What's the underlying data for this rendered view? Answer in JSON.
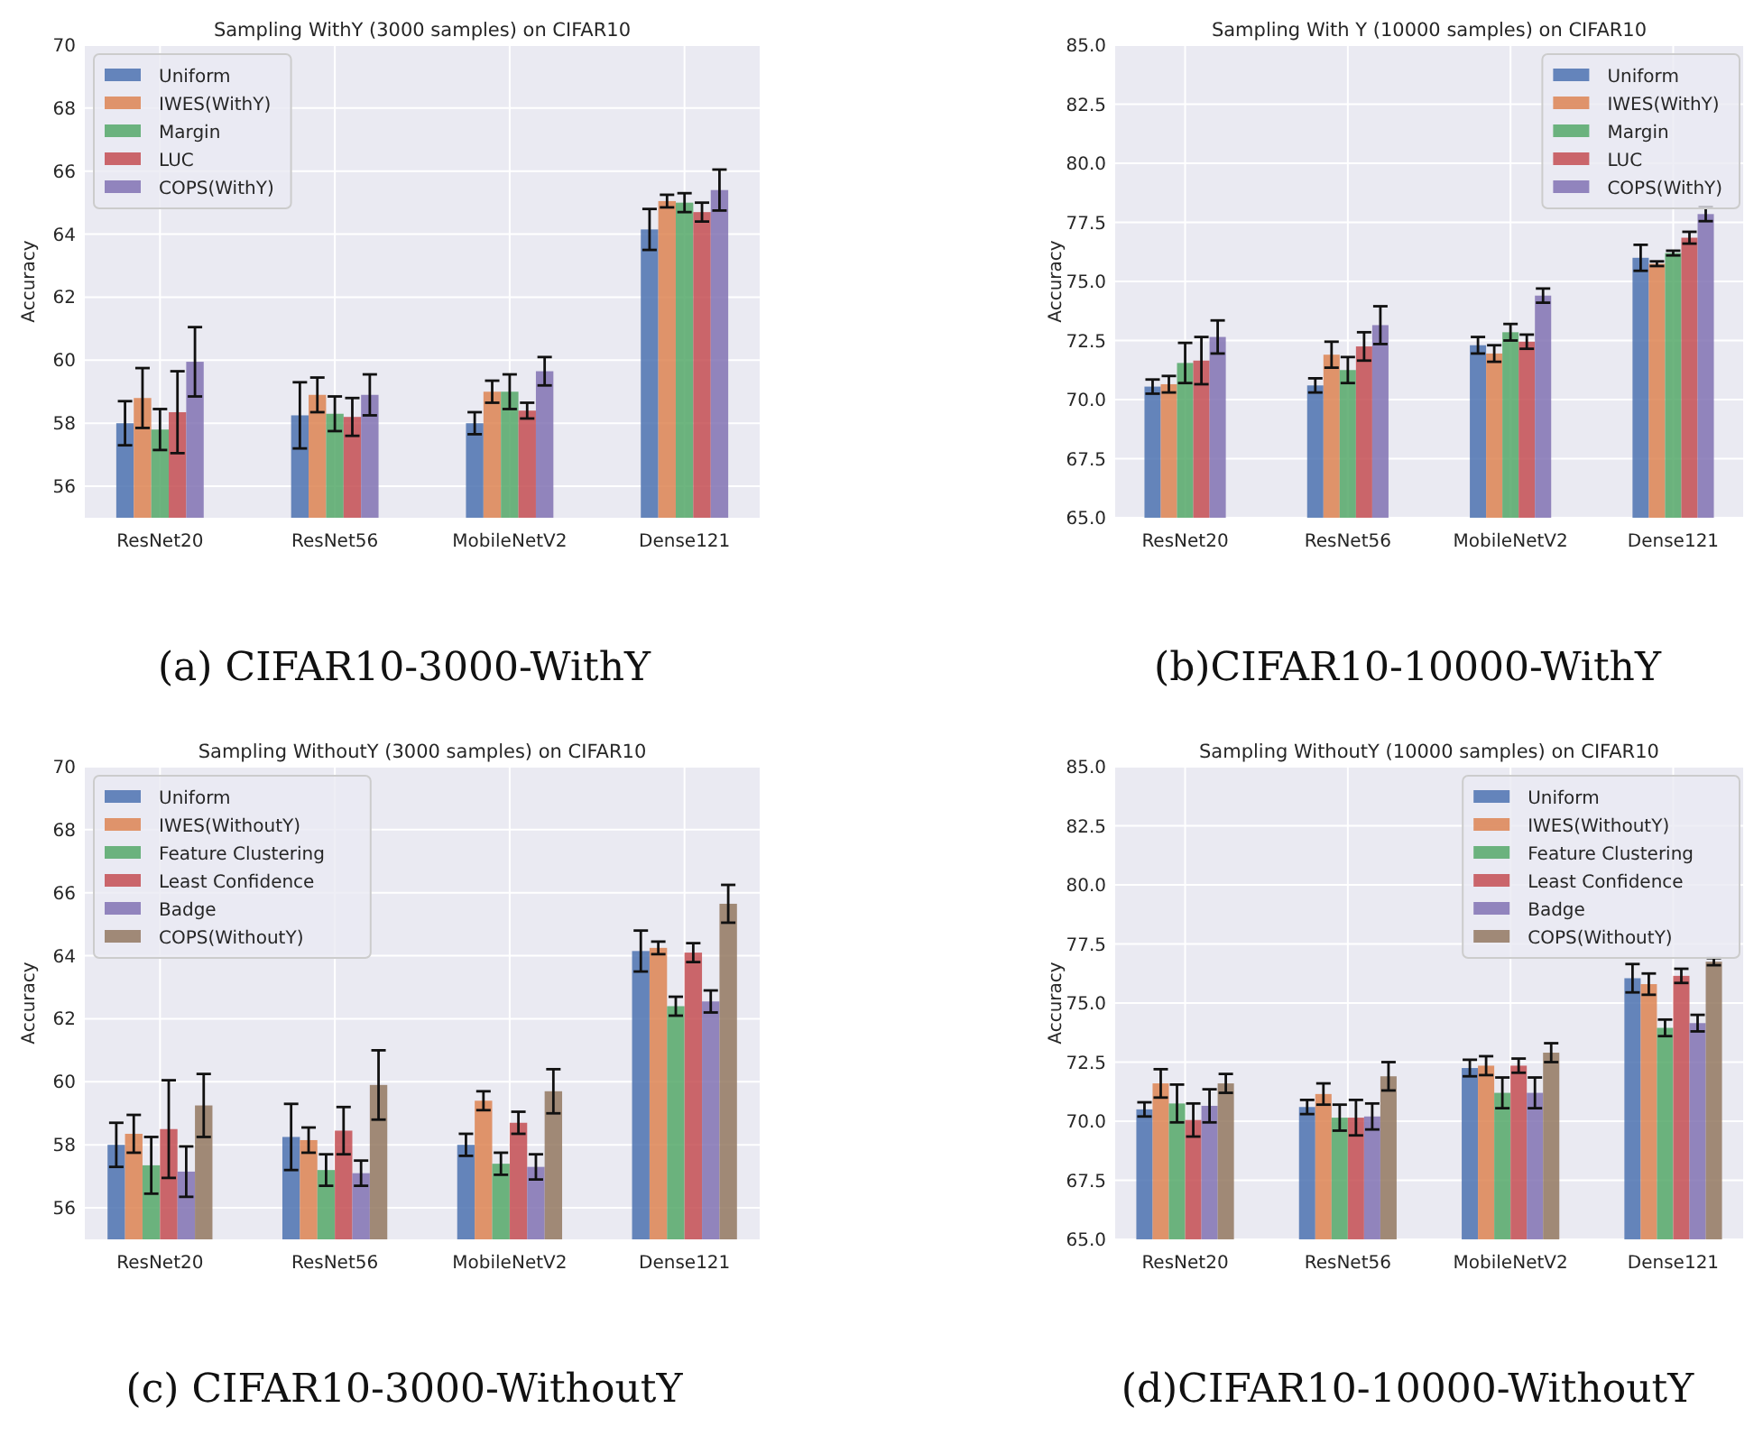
{
  "chart_data": [
    {
      "type": "bar",
      "title": "Sampling WithY (3000 samples) on CIFAR10",
      "ylabel": "Accuracy",
      "categories": [
        "ResNet20",
        "ResNet56",
        "MobileNetV2",
        "Dense121"
      ],
      "series": [
        {
          "name": "Uniform",
          "color": "#4c72b0",
          "values": [
            58.0,
            58.25,
            58.0,
            64.15
          ],
          "errors": [
            0.7,
            1.05,
            0.35,
            0.65
          ]
        },
        {
          "name": "IWES(WithY)",
          "color": "#dd8452",
          "values": [
            58.8,
            58.9,
            59.0,
            65.05
          ],
          "errors": [
            0.95,
            0.55,
            0.35,
            0.2
          ]
        },
        {
          "name": "Margin",
          "color": "#55a868",
          "values": [
            57.8,
            58.3,
            59.0,
            65.0
          ],
          "errors": [
            0.65,
            0.55,
            0.55,
            0.3
          ]
        },
        {
          "name": "LUC",
          "color": "#c44e52",
          "values": [
            58.35,
            58.2,
            58.4,
            64.7
          ],
          "errors": [
            1.3,
            0.6,
            0.25,
            0.3
          ]
        },
        {
          "name": "COPS(WithY)",
          "color": "#8172b3",
          "values": [
            59.95,
            58.9,
            59.65,
            65.4
          ],
          "errors": [
            1.1,
            0.65,
            0.45,
            0.65
          ]
        }
      ],
      "ylim": [
        55,
        70
      ],
      "yticks": [
        56,
        58,
        60,
        62,
        64,
        66,
        68,
        70
      ],
      "grid": true,
      "legend": "top left",
      "annotations": [
        "(a) CIFAR10-3000-WithY"
      ]
    },
    {
      "type": "bar",
      "title": "Sampling With Y (10000 samples) on CIFAR10",
      "ylabel": "Accuracy",
      "categories": [
        "ResNet20",
        "ResNet56",
        "MobileNetV2",
        "Dense121"
      ],
      "series": [
        {
          "name": "Uniform",
          "color": "#4c72b0",
          "values": [
            70.55,
            70.6,
            72.3,
            76.0
          ],
          "errors": [
            0.3,
            0.3,
            0.35,
            0.55
          ]
        },
        {
          "name": "IWES(WithY)",
          "color": "#dd8452",
          "values": [
            70.65,
            71.9,
            71.95,
            75.75
          ],
          "errors": [
            0.35,
            0.55,
            0.35,
            0.1
          ]
        },
        {
          "name": "Margin",
          "color": "#55a868",
          "values": [
            71.55,
            71.25,
            72.85,
            76.2
          ],
          "errors": [
            0.85,
            0.55,
            0.35,
            0.1
          ]
        },
        {
          "name": "LUC",
          "color": "#c44e52",
          "values": [
            71.65,
            72.25,
            72.45,
            76.85
          ],
          "errors": [
            1.0,
            0.6,
            0.3,
            0.25
          ]
        },
        {
          "name": "COPS(WithY)",
          "color": "#8172b3",
          "values": [
            72.65,
            73.15,
            74.4,
            77.85
          ],
          "errors": [
            0.7,
            0.8,
            0.3,
            0.3
          ]
        }
      ],
      "ylim": [
        65,
        85
      ],
      "yticks": [
        {
          "value": 65,
          "label": "65.0"
        },
        {
          "value": 67.5,
          "label": "67.5"
        },
        {
          "value": 70,
          "label": "70.0"
        },
        {
          "value": 72.5,
          "label": "72.5"
        },
        {
          "value": 75,
          "label": "75.0"
        },
        {
          "value": 77.5,
          "label": "77.5"
        },
        {
          "value": 80,
          "label": "80.0"
        },
        {
          "value": 82.5,
          "label": "82.5"
        },
        {
          "value": 85,
          "label": "85.0"
        }
      ],
      "grid": true,
      "legend": "top right",
      "annotations": [
        "(b)CIFAR10-10000-WithY"
      ]
    },
    {
      "type": "bar",
      "title": "Sampling WithoutY (3000 samples) on CIFAR10",
      "ylabel": "Accuracy",
      "categories": [
        "ResNet20",
        "ResNet56",
        "MobileNetV2",
        "Dense121"
      ],
      "series": [
        {
          "name": "Uniform",
          "color": "#4c72b0",
          "values": [
            58.0,
            58.25,
            58.0,
            64.15
          ],
          "errors": [
            0.7,
            1.05,
            0.35,
            0.65
          ]
        },
        {
          "name": "IWES(WithoutY)",
          "color": "#dd8452",
          "values": [
            58.35,
            58.15,
            59.4,
            64.25
          ],
          "errors": [
            0.6,
            0.4,
            0.3,
            0.2
          ]
        },
        {
          "name": "Feature Clustering",
          "color": "#55a868",
          "values": [
            57.35,
            57.2,
            57.4,
            62.4
          ],
          "errors": [
            0.9,
            0.5,
            0.35,
            0.3
          ]
        },
        {
          "name": "Least Confidence",
          "color": "#c44e52",
          "values": [
            58.5,
            58.45,
            58.7,
            64.1
          ],
          "errors": [
            1.55,
            0.75,
            0.35,
            0.3
          ]
        },
        {
          "name": "Badge",
          "color": "#8172b3",
          "values": [
            57.15,
            57.1,
            57.3,
            62.55
          ],
          "errors": [
            0.8,
            0.4,
            0.4,
            0.35
          ]
        },
        {
          "name": "COPS(WithoutY)",
          "color": "#937860",
          "values": [
            59.25,
            59.9,
            59.7,
            65.65
          ],
          "errors": [
            1.0,
            1.1,
            0.7,
            0.6
          ]
        }
      ],
      "ylim": [
        55,
        70
      ],
      "yticks": [
        56,
        58,
        60,
        62,
        64,
        66,
        68,
        70
      ],
      "grid": true,
      "legend": "top left",
      "annotations": [
        "(c) CIFAR10-3000-WithoutY"
      ]
    },
    {
      "type": "bar",
      "title": "Sampling WithoutY (10000 samples) on CIFAR10",
      "ylabel": "Accuracy",
      "categories": [
        "ResNet20",
        "ResNet56",
        "MobileNetV2",
        "Dense121"
      ],
      "series": [
        {
          "name": "Uniform",
          "color": "#4c72b0",
          "values": [
            70.5,
            70.6,
            72.25,
            76.05
          ],
          "errors": [
            0.3,
            0.3,
            0.35,
            0.6
          ]
        },
        {
          "name": "IWES(WithoutY)",
          "color": "#dd8452",
          "values": [
            71.6,
            71.15,
            72.35,
            75.8
          ],
          "errors": [
            0.6,
            0.45,
            0.4,
            0.45
          ]
        },
        {
          "name": "Feature Clustering",
          "color": "#55a868",
          "values": [
            70.75,
            70.15,
            71.2,
            73.95
          ],
          "errors": [
            0.8,
            0.55,
            0.65,
            0.35
          ]
        },
        {
          "name": "Least Confidence",
          "color": "#c44e52",
          "values": [
            70.05,
            70.15,
            72.35,
            76.15
          ],
          "errors": [
            0.7,
            0.75,
            0.3,
            0.3
          ]
        },
        {
          "name": "Badge",
          "color": "#8172b3",
          "values": [
            70.65,
            70.2,
            71.2,
            74.15
          ],
          "errors": [
            0.7,
            0.55,
            0.65,
            0.35
          ]
        },
        {
          "name": "COPS(WithoutY)",
          "color": "#937860",
          "values": [
            71.6,
            71.9,
            72.9,
            76.75
          ],
          "errors": [
            0.4,
            0.6,
            0.4,
            0.15
          ]
        }
      ],
      "ylim": [
        65,
        85
      ],
      "yticks": [
        {
          "value": 65,
          "label": "65.0"
        },
        {
          "value": 67.5,
          "label": "67.5"
        },
        {
          "value": 70,
          "label": "70.0"
        },
        {
          "value": 72.5,
          "label": "72.5"
        },
        {
          "value": 75,
          "label": "75.0"
        },
        {
          "value": 77.5,
          "label": "77.5"
        },
        {
          "value": 80,
          "label": "80.0"
        },
        {
          "value": 82.5,
          "label": "82.5"
        },
        {
          "value": 85,
          "label": "85.0"
        }
      ],
      "grid": true,
      "legend": "top right",
      "annotations": [
        "(d)CIFAR10-10000-WithoutY"
      ]
    }
  ]
}
